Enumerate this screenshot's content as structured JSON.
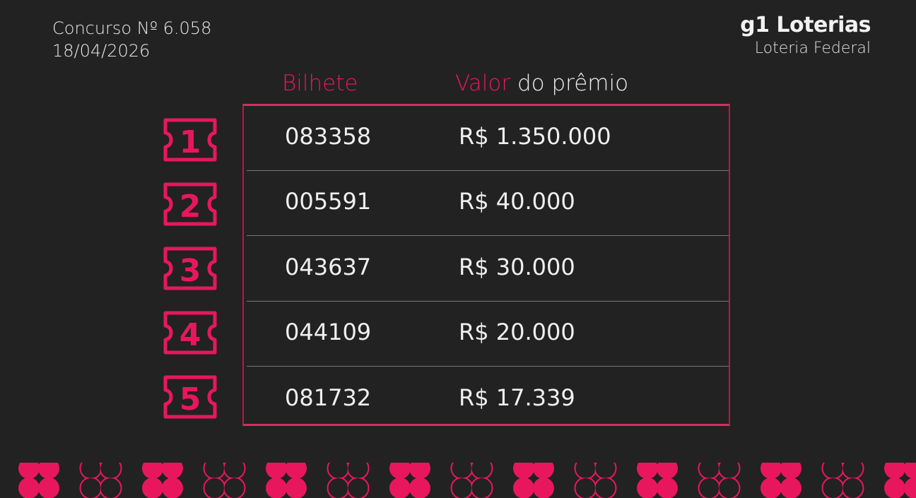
{
  "header": {
    "contest": "Concurso Nº 6.058",
    "date": "18/04/2026",
    "brand": "g1 Loterias",
    "subtitle": "Loteria Federal"
  },
  "columns": {
    "ticket": "Bilhete",
    "prize_a": "Valor",
    "prize_b": " do prêmio"
  },
  "results": [
    {
      "place": "1",
      "ticket": "083358",
      "prize": "R$ 1.350.000"
    },
    {
      "place": "2",
      "ticket": "005591",
      "prize": "R$ 40.000"
    },
    {
      "place": "3",
      "ticket": "043637",
      "prize": "R$ 30.000"
    },
    {
      "place": "4",
      "ticket": "044109",
      "prize": "R$ 20.000"
    },
    {
      "place": "5",
      "ticket": "081732",
      "prize": "R$ 17.339"
    }
  ],
  "colors": {
    "accent": "#e8175d",
    "background": "#222222"
  },
  "decoration": {
    "icon": "clover-icon",
    "pattern": "alternating filled/outline"
  }
}
